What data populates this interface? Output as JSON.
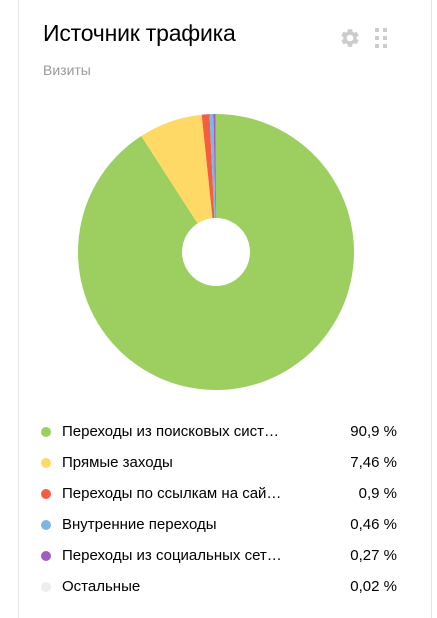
{
  "widget": {
    "title": "Источник трафика",
    "subtitle": "Визиты",
    "settings_icon": "gear-icon",
    "drag_icon": "drag-handle-icon"
  },
  "chart_data": {
    "type": "pie",
    "donut": true,
    "unit": "%",
    "slices": [
      {
        "label": "Переходы из поисковых систем",
        "display_label": "Переходы из поисковых сист…",
        "value": 90.9,
        "value_text": "90,9 %",
        "color": "#9ccf60"
      },
      {
        "label": "Прямые заходы",
        "display_label": "Прямые заходы",
        "value": 7.46,
        "value_text": "7,46 %",
        "color": "#fed966"
      },
      {
        "label": "Переходы по ссылкам на сайтах",
        "display_label": "Переходы по ссылкам на сай…",
        "value": 0.9,
        "value_text": "0,9 %",
        "color": "#f55d40"
      },
      {
        "label": "Внутренние переходы",
        "display_label": "Внутренние переходы",
        "value": 0.46,
        "value_text": "0,46 %",
        "color": "#7fb6e6"
      },
      {
        "label": "Переходы из социальных сетей",
        "display_label": "Переходы из социальных сет…",
        "value": 0.27,
        "value_text": "0,27 %",
        "color": "#a15cc1"
      },
      {
        "label": "Остальные",
        "display_label": "Остальные",
        "value": 0.02,
        "value_text": "0,02 %",
        "color": "#eeeeea"
      }
    ],
    "legend_position": "bottom"
  },
  "colors": {
    "title": "#000000",
    "subtitle": "#999999",
    "icon": "#cccccc",
    "border": "#e5e5e5"
  }
}
